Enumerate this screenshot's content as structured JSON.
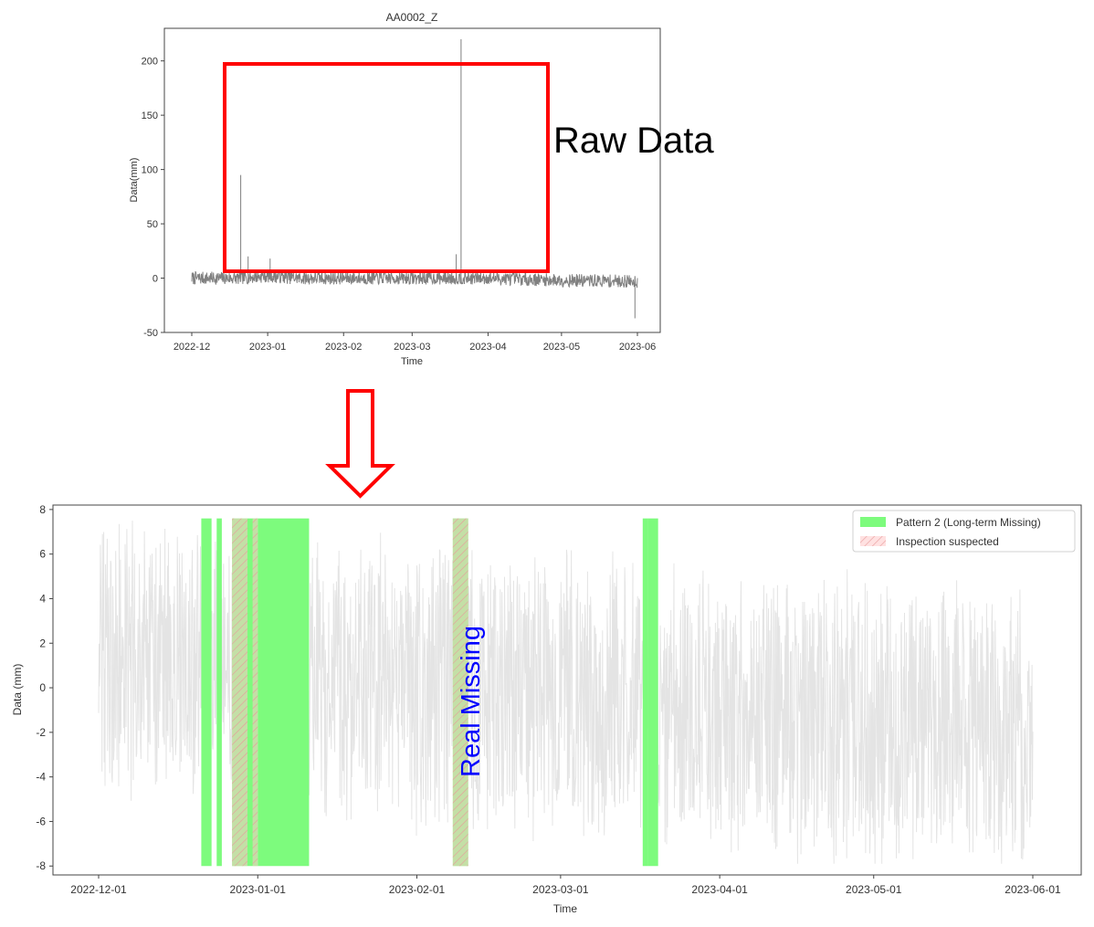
{
  "annotations": {
    "raw_data_label": "Raw Data",
    "real_missing_label": "Real Missing",
    "highlight_color": "#ff0000",
    "arrow_color": "#ff0000",
    "real_missing_color": "#0000ff"
  },
  "chart_data": [
    {
      "type": "line",
      "title": "AA0002_Z",
      "xlabel": "Time",
      "ylabel": "Data(mm)",
      "xlim": [
        "2022-12-01",
        "2023-06-01"
      ],
      "ylim": [
        -50,
        230
      ],
      "yticks": [
        -50,
        0,
        50,
        100,
        150,
        200
      ],
      "ytick_labels": [
        "-50",
        "0",
        "50",
        "100",
        "150",
        "200"
      ],
      "xticks": [
        "2022-12-01",
        "2023-01-01",
        "2023-02-01",
        "2023-03-01",
        "2023-04-01",
        "2023-05-01",
        "2023-06-01"
      ],
      "xtick_labels": [
        "2022-12",
        "2023-01",
        "2023-02",
        "2023-03",
        "2023-04",
        "2023-05",
        "2023-06"
      ],
      "grid": false,
      "line_color": "#808080",
      "series": [
        {
          "name": "",
          "baseline": [
            [
              "2022-12-01",
              0
            ],
            [
              "2022-12-20",
              0
            ],
            [
              "2023-01-01",
              2
            ],
            [
              "2023-01-14",
              0
            ],
            [
              "2023-02-01",
              0
            ],
            [
              "2023-02-15",
              0
            ],
            [
              "2023-03-01",
              0
            ],
            [
              "2023-03-18",
              0
            ],
            [
              "2023-04-01",
              0
            ],
            [
              "2023-05-01",
              -2
            ],
            [
              "2023-06-01",
              -3
            ]
          ],
          "spikes": [
            [
              "2022-12-21",
              95
            ],
            [
              "2022-12-24",
              20
            ],
            [
              "2023-01-02",
              18
            ],
            [
              "2023-03-19",
              22
            ],
            [
              "2023-03-21",
              220
            ],
            [
              "2023-05-31",
              -37
            ]
          ]
        }
      ]
    },
    {
      "type": "line",
      "title": "",
      "xlabel": "Time",
      "ylabel": "Data (mm)",
      "xlim": [
        "2022-11-24",
        "2023-06-08"
      ],
      "ylim": [
        -8.4,
        8.2
      ],
      "yticks": [
        -8,
        -6,
        -4,
        -2,
        0,
        2,
        4,
        6,
        8
      ],
      "ytick_labels": [
        "-8",
        "-6",
        "-4",
        "-2",
        "0",
        "2",
        "4",
        "6",
        "8"
      ],
      "xticks": [
        "2022-12-01",
        "2023-01-01",
        "2023-02-01",
        "2023-03-01",
        "2023-04-01",
        "2023-05-01",
        "2023-06-01"
      ],
      "xtick_labels": [
        "2022-12-01",
        "2023-01-01",
        "2023-02-01",
        "2023-03-01",
        "2023-04-01",
        "2023-05-01",
        "2023-06-01"
      ],
      "grid": false,
      "line_color": "#e4e4e4",
      "data_range": [
        "2022-12-01",
        "2023-06-01"
      ],
      "legend": {
        "placement": "top-right",
        "entries": [
          {
            "label": "Pattern 2 (Long-term Missing)",
            "color": "#7dfb7d",
            "style": "solid"
          },
          {
            "label": "Inspection suspected",
            "color": "#ffc8c8",
            "style": "hatched"
          }
        ]
      },
      "missing_spans": [
        [
          "2022-12-21",
          "2022-12-23"
        ],
        [
          "2022-12-24",
          "2022-12-25"
        ],
        [
          "2022-12-27",
          "2023-01-01"
        ],
        [
          "2023-01-01",
          "2023-01-11"
        ],
        [
          "2023-02-08",
          "2023-02-11"
        ],
        [
          "2023-03-17",
          "2023-03-18"
        ],
        [
          "2023-03-18",
          "2023-03-20"
        ]
      ],
      "inspection_spans": [
        [
          "2022-12-27",
          "2022-12-30"
        ],
        [
          "2022-12-31",
          "2023-01-01"
        ],
        [
          "2023-02-08",
          "2023-02-11"
        ]
      ]
    }
  ]
}
